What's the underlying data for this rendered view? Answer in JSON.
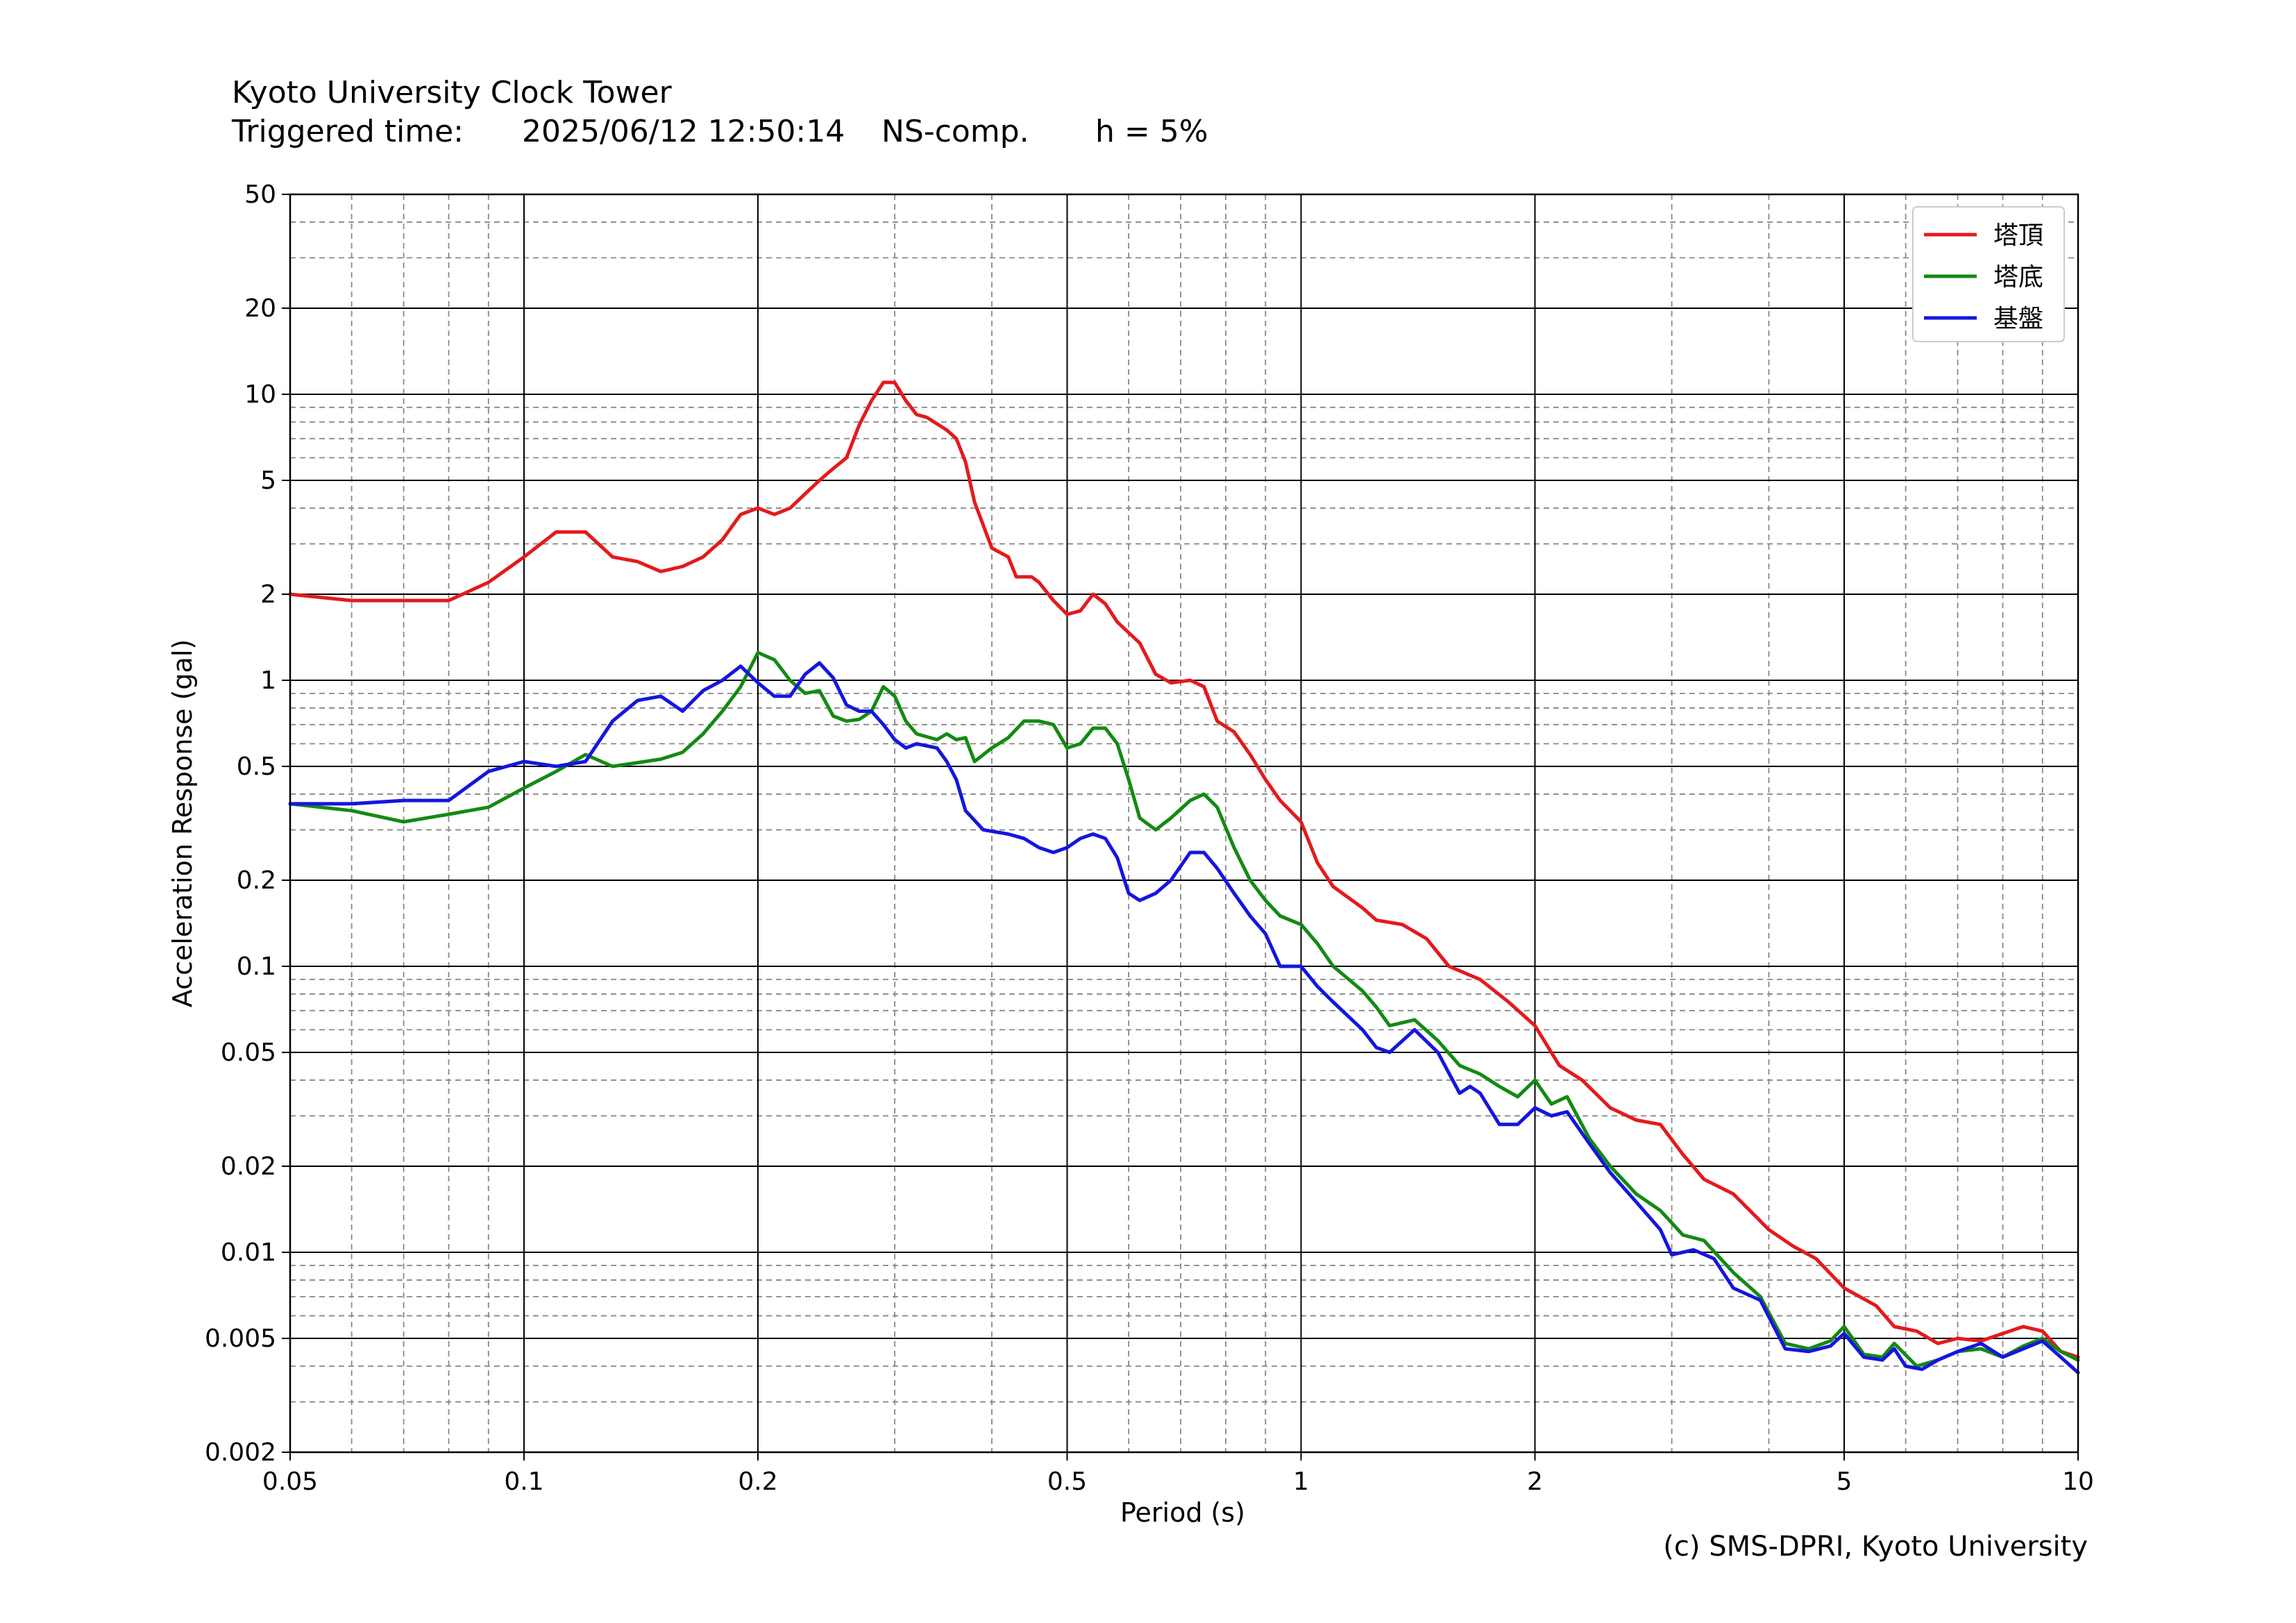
{
  "header": {
    "station": "Kyoto University Clock Tower",
    "trigger_label": "Triggered time:",
    "trigger_time": "2025/06/12 12:50:14",
    "component": "NS-comp.",
    "damping": "h = 5%"
  },
  "credit": "(c) SMS-DPRI, Kyoto University",
  "colors": {
    "top": "#e41a1c",
    "base": "#138a13",
    "ground": "#1515e0",
    "grid_major": "#000000",
    "grid_minor": "#888888"
  },
  "chart_data": {
    "type": "line",
    "xscale": "log",
    "yscale": "log",
    "xlim": [
      0.05,
      10
    ],
    "ylim": [
      0.002,
      50
    ],
    "xlabel": "Period (s)",
    "ylabel": "Acceleration Response (gal)",
    "xticks": [
      0.05,
      0.1,
      0.2,
      0.5,
      1,
      2,
      5,
      10
    ],
    "xtick_labels": [
      "0.05",
      "0.1",
      "0.2",
      "0.5",
      "1",
      "2",
      "5",
      "10"
    ],
    "yticks": [
      0.002,
      0.005,
      0.01,
      0.02,
      0.05,
      0.1,
      0.2,
      0.5,
      1,
      2,
      5,
      10,
      20,
      50
    ],
    "ytick_labels": [
      "0.002",
      "0.005",
      "0.01",
      "0.02",
      "0.05",
      "0.1",
      "0.2",
      "0.5",
      "1",
      "2",
      "5",
      "10",
      "20",
      "50"
    ],
    "grid": "major solid, minor dashed",
    "legend_position": "top-right",
    "series": [
      {
        "name": "塔頂",
        "color": "#e41a1c",
        "points": [
          [
            0.05,
            2.0
          ],
          [
            0.06,
            1.9
          ],
          [
            0.07,
            1.9
          ],
          [
            0.08,
            1.9
          ],
          [
            0.09,
            2.2
          ],
          [
            0.1,
            2.7
          ],
          [
            0.11,
            3.3
          ],
          [
            0.12,
            3.3
          ],
          [
            0.13,
            2.7
          ],
          [
            0.14,
            2.6
          ],
          [
            0.15,
            2.4
          ],
          [
            0.16,
            2.5
          ],
          [
            0.17,
            2.7
          ],
          [
            0.18,
            3.1
          ],
          [
            0.19,
            3.8
          ],
          [
            0.2,
            4.0
          ],
          [
            0.21,
            3.8
          ],
          [
            0.22,
            4.0
          ],
          [
            0.24,
            5.0
          ],
          [
            0.25,
            5.5
          ],
          [
            0.26,
            6.0
          ],
          [
            0.27,
            7.8
          ],
          [
            0.28,
            9.5
          ],
          [
            0.29,
            11.0
          ],
          [
            0.3,
            11.0
          ],
          [
            0.31,
            9.5
          ],
          [
            0.32,
            8.5
          ],
          [
            0.33,
            8.3
          ],
          [
            0.35,
            7.5
          ],
          [
            0.36,
            7.0
          ],
          [
            0.37,
            5.8
          ],
          [
            0.38,
            4.2
          ],
          [
            0.4,
            2.9
          ],
          [
            0.42,
            2.7
          ],
          [
            0.43,
            2.3
          ],
          [
            0.45,
            2.3
          ],
          [
            0.46,
            2.2
          ],
          [
            0.48,
            1.9
          ],
          [
            0.5,
            1.7
          ],
          [
            0.52,
            1.75
          ],
          [
            0.54,
            2.0
          ],
          [
            0.56,
            1.85
          ],
          [
            0.58,
            1.6
          ],
          [
            0.62,
            1.35
          ],
          [
            0.65,
            1.05
          ],
          [
            0.68,
            0.98
          ],
          [
            0.72,
            1.0
          ],
          [
            0.75,
            0.95
          ],
          [
            0.78,
            0.72
          ],
          [
            0.82,
            0.66
          ],
          [
            0.86,
            0.55
          ],
          [
            0.9,
            0.45
          ],
          [
            0.94,
            0.38
          ],
          [
            1.0,
            0.32
          ],
          [
            1.05,
            0.23
          ],
          [
            1.1,
            0.19
          ],
          [
            1.2,
            0.16
          ],
          [
            1.25,
            0.145
          ],
          [
            1.35,
            0.14
          ],
          [
            1.45,
            0.125
          ],
          [
            1.55,
            0.1
          ],
          [
            1.7,
            0.09
          ],
          [
            1.85,
            0.075
          ],
          [
            2.0,
            0.062
          ],
          [
            2.15,
            0.045
          ],
          [
            2.3,
            0.04
          ],
          [
            2.5,
            0.032
          ],
          [
            2.7,
            0.029
          ],
          [
            2.9,
            0.028
          ],
          [
            3.1,
            0.022
          ],
          [
            3.3,
            0.018
          ],
          [
            3.6,
            0.016
          ],
          [
            4.0,
            0.012
          ],
          [
            4.3,
            0.0105
          ],
          [
            4.6,
            0.0095
          ],
          [
            5.0,
            0.0075
          ],
          [
            5.5,
            0.0065
          ],
          [
            5.8,
            0.0055
          ],
          [
            6.2,
            0.0053
          ],
          [
            6.6,
            0.0048
          ],
          [
            7.0,
            0.005
          ],
          [
            7.5,
            0.0049
          ],
          [
            8.0,
            0.0052
          ],
          [
            8.5,
            0.0055
          ],
          [
            9.0,
            0.0053
          ],
          [
            9.5,
            0.0045
          ],
          [
            10.0,
            0.0043
          ]
        ]
      },
      {
        "name": "塔底",
        "color": "#138a13",
        "points": [
          [
            0.05,
            0.37
          ],
          [
            0.06,
            0.35
          ],
          [
            0.07,
            0.32
          ],
          [
            0.08,
            0.34
          ],
          [
            0.09,
            0.36
          ],
          [
            0.1,
            0.42
          ],
          [
            0.11,
            0.48
          ],
          [
            0.12,
            0.55
          ],
          [
            0.13,
            0.5
          ],
          [
            0.15,
            0.53
          ],
          [
            0.16,
            0.56
          ],
          [
            0.17,
            0.65
          ],
          [
            0.18,
            0.78
          ],
          [
            0.19,
            0.95
          ],
          [
            0.2,
            1.25
          ],
          [
            0.21,
            1.18
          ],
          [
            0.22,
            1.0
          ],
          [
            0.23,
            0.9
          ],
          [
            0.24,
            0.92
          ],
          [
            0.25,
            0.75
          ],
          [
            0.26,
            0.72
          ],
          [
            0.27,
            0.73
          ],
          [
            0.28,
            0.78
          ],
          [
            0.29,
            0.95
          ],
          [
            0.3,
            0.88
          ],
          [
            0.31,
            0.72
          ],
          [
            0.32,
            0.65
          ],
          [
            0.34,
            0.62
          ],
          [
            0.35,
            0.65
          ],
          [
            0.36,
            0.62
          ],
          [
            0.37,
            0.63
          ],
          [
            0.38,
            0.52
          ],
          [
            0.4,
            0.58
          ],
          [
            0.42,
            0.63
          ],
          [
            0.44,
            0.72
          ],
          [
            0.46,
            0.72
          ],
          [
            0.48,
            0.7
          ],
          [
            0.5,
            0.58
          ],
          [
            0.52,
            0.6
          ],
          [
            0.54,
            0.68
          ],
          [
            0.56,
            0.68
          ],
          [
            0.58,
            0.6
          ],
          [
            0.6,
            0.45
          ],
          [
            0.62,
            0.33
          ],
          [
            0.65,
            0.3
          ],
          [
            0.68,
            0.33
          ],
          [
            0.72,
            0.38
          ],
          [
            0.75,
            0.4
          ],
          [
            0.78,
            0.36
          ],
          [
            0.82,
            0.26
          ],
          [
            0.86,
            0.2
          ],
          [
            0.9,
            0.17
          ],
          [
            0.94,
            0.15
          ],
          [
            1.0,
            0.14
          ],
          [
            1.05,
            0.12
          ],
          [
            1.1,
            0.1
          ],
          [
            1.2,
            0.082
          ],
          [
            1.25,
            0.072
          ],
          [
            1.3,
            0.062
          ],
          [
            1.4,
            0.065
          ],
          [
            1.5,
            0.055
          ],
          [
            1.6,
            0.045
          ],
          [
            1.7,
            0.042
          ],
          [
            1.8,
            0.038
          ],
          [
            1.9,
            0.035
          ],
          [
            2.0,
            0.04
          ],
          [
            2.1,
            0.033
          ],
          [
            2.2,
            0.035
          ],
          [
            2.35,
            0.025
          ],
          [
            2.5,
            0.02
          ],
          [
            2.7,
            0.016
          ],
          [
            2.9,
            0.014
          ],
          [
            3.1,
            0.0115
          ],
          [
            3.3,
            0.011
          ],
          [
            3.6,
            0.0085
          ],
          [
            3.9,
            0.007
          ],
          [
            4.2,
            0.0048
          ],
          [
            4.5,
            0.0046
          ],
          [
            4.8,
            0.0049
          ],
          [
            5.0,
            0.0055
          ],
          [
            5.3,
            0.0044
          ],
          [
            5.6,
            0.0043
          ],
          [
            5.8,
            0.0048
          ],
          [
            6.2,
            0.004
          ],
          [
            6.6,
            0.0042
          ],
          [
            7.0,
            0.0045
          ],
          [
            7.5,
            0.0046
          ],
          [
            8.0,
            0.0043
          ],
          [
            8.5,
            0.0047
          ],
          [
            9.0,
            0.005
          ],
          [
            9.5,
            0.0045
          ],
          [
            10.0,
            0.0042
          ]
        ]
      },
      {
        "name": "基盤",
        "color": "#1515e0",
        "points": [
          [
            0.05,
            0.37
          ],
          [
            0.06,
            0.37
          ],
          [
            0.07,
            0.38
          ],
          [
            0.08,
            0.38
          ],
          [
            0.09,
            0.48
          ],
          [
            0.1,
            0.52
          ],
          [
            0.11,
            0.5
          ],
          [
            0.12,
            0.52
          ],
          [
            0.13,
            0.72
          ],
          [
            0.14,
            0.85
          ],
          [
            0.15,
            0.88
          ],
          [
            0.16,
            0.78
          ],
          [
            0.17,
            0.92
          ],
          [
            0.18,
            1.0
          ],
          [
            0.19,
            1.12
          ],
          [
            0.2,
            0.98
          ],
          [
            0.21,
            0.88
          ],
          [
            0.22,
            0.88
          ],
          [
            0.23,
            1.05
          ],
          [
            0.24,
            1.15
          ],
          [
            0.25,
            1.02
          ],
          [
            0.26,
            0.82
          ],
          [
            0.27,
            0.78
          ],
          [
            0.28,
            0.78
          ],
          [
            0.29,
            0.7
          ],
          [
            0.3,
            0.62
          ],
          [
            0.31,
            0.58
          ],
          [
            0.32,
            0.6
          ],
          [
            0.34,
            0.58
          ],
          [
            0.35,
            0.52
          ],
          [
            0.36,
            0.45
          ],
          [
            0.37,
            0.35
          ],
          [
            0.39,
            0.3
          ],
          [
            0.42,
            0.29
          ],
          [
            0.44,
            0.28
          ],
          [
            0.46,
            0.26
          ],
          [
            0.48,
            0.25
          ],
          [
            0.5,
            0.26
          ],
          [
            0.52,
            0.28
          ],
          [
            0.54,
            0.29
          ],
          [
            0.56,
            0.28
          ],
          [
            0.58,
            0.24
          ],
          [
            0.6,
            0.18
          ],
          [
            0.62,
            0.17
          ],
          [
            0.65,
            0.18
          ],
          [
            0.68,
            0.2
          ],
          [
            0.72,
            0.25
          ],
          [
            0.75,
            0.25
          ],
          [
            0.78,
            0.22
          ],
          [
            0.82,
            0.18
          ],
          [
            0.86,
            0.15
          ],
          [
            0.9,
            0.13
          ],
          [
            0.94,
            0.1
          ],
          [
            1.0,
            0.1
          ],
          [
            1.05,
            0.085
          ],
          [
            1.1,
            0.075
          ],
          [
            1.2,
            0.06
          ],
          [
            1.25,
            0.052
          ],
          [
            1.3,
            0.05
          ],
          [
            1.4,
            0.06
          ],
          [
            1.5,
            0.05
          ],
          [
            1.6,
            0.036
          ],
          [
            1.65,
            0.038
          ],
          [
            1.7,
            0.036
          ],
          [
            1.8,
            0.028
          ],
          [
            1.9,
            0.028
          ],
          [
            2.0,
            0.032
          ],
          [
            2.1,
            0.03
          ],
          [
            2.2,
            0.031
          ],
          [
            2.35,
            0.024
          ],
          [
            2.5,
            0.019
          ],
          [
            2.7,
            0.015
          ],
          [
            2.9,
            0.012
          ],
          [
            3.0,
            0.0098
          ],
          [
            3.2,
            0.0102
          ],
          [
            3.4,
            0.0095
          ],
          [
            3.6,
            0.0075
          ],
          [
            3.9,
            0.0068
          ],
          [
            4.2,
            0.0046
          ],
          [
            4.5,
            0.0045
          ],
          [
            4.8,
            0.0047
          ],
          [
            5.0,
            0.0052
          ],
          [
            5.3,
            0.0043
          ],
          [
            5.6,
            0.0042
          ],
          [
            5.8,
            0.0046
          ],
          [
            6.0,
            0.004
          ],
          [
            6.3,
            0.0039
          ],
          [
            6.6,
            0.0042
          ],
          [
            7.0,
            0.0045
          ],
          [
            7.5,
            0.0048
          ],
          [
            8.0,
            0.0043
          ],
          [
            8.5,
            0.0046
          ],
          [
            9.0,
            0.0049
          ],
          [
            9.5,
            0.0043
          ],
          [
            10.0,
            0.0038
          ]
        ]
      }
    ]
  }
}
